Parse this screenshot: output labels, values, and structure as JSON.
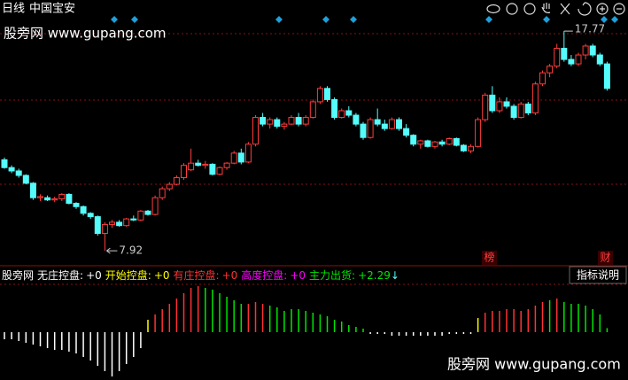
{
  "header": {
    "period": "日线",
    "name": "中国宝安"
  },
  "watermark": "股旁网 www.gupang.com",
  "chart_data": [
    {
      "type": "candlestick",
      "open": [
        12.0,
        11.65,
        11.5,
        11.3,
        10.95,
        10.3,
        10.3,
        10.2,
        10.25,
        10.45,
        10.05,
        9.9,
        9.6,
        9.45,
        8.7,
        9.1,
        9.2,
        9.05,
        9.35,
        9.3,
        9.7,
        9.55,
        10.3,
        10.7,
        10.9,
        11.2,
        11.55,
        11.85,
        11.75,
        11.8,
        11.35,
        11.65,
        11.85,
        12.3,
        11.9,
        12.7,
        13.9,
        13.6,
        13.8,
        13.5,
        13.6,
        13.9,
        13.6,
        13.9,
        14.6,
        15.2,
        14.7,
        13.9,
        14.2,
        14.0,
        13.6,
        13.0,
        13.8,
        13.6,
        13.4,
        13.8,
        13.4,
        13.1,
        12.7,
        12.85,
        12.6,
        12.8,
        12.7,
        12.95,
        12.65,
        12.4,
        12.6,
        13.8,
        14.9,
        14.2,
        14.6,
        14.4,
        13.9,
        14.5,
        14.1,
        15.4,
        15.9,
        16.2,
        17.0,
        16.5,
        16.3,
        16.7,
        17.1,
        16.7,
        16.3
      ],
      "high": [
        12.1,
        11.75,
        11.6,
        11.35,
        11.0,
        10.45,
        10.4,
        10.35,
        10.5,
        10.5,
        10.1,
        9.95,
        9.65,
        9.5,
        9.2,
        9.3,
        9.3,
        9.4,
        9.5,
        9.75,
        9.75,
        10.4,
        10.8,
        11.0,
        11.3,
        11.85,
        12.5,
        12.0,
        11.95,
        11.85,
        11.7,
        11.9,
        12.4,
        12.5,
        12.8,
        14.0,
        14.1,
        13.9,
        13.9,
        13.7,
        14.0,
        14.1,
        14.0,
        14.7,
        15.3,
        15.3,
        14.8,
        14.3,
        14.4,
        14.1,
        13.7,
        13.9,
        14.3,
        13.8,
        13.9,
        13.9,
        13.6,
        13.15,
        12.9,
        12.9,
        12.85,
        12.9,
        13.0,
        13.0,
        12.7,
        12.7,
        13.9,
        15.0,
        15.3,
        14.8,
        14.8,
        14.5,
        14.6,
        14.6,
        15.5,
        16.0,
        16.3,
        17.2,
        17.77,
        16.7,
        16.8,
        17.2,
        17.2,
        16.8,
        16.4
      ],
      "low": [
        11.6,
        11.4,
        11.2,
        10.9,
        10.2,
        10.15,
        10.15,
        10.1,
        10.15,
        10.0,
        9.8,
        9.5,
        9.35,
        8.6,
        7.92,
        8.95,
        9.0,
        9.0,
        9.25,
        9.25,
        9.5,
        9.5,
        10.2,
        10.6,
        10.85,
        11.1,
        11.5,
        11.7,
        11.6,
        11.3,
        11.3,
        11.55,
        11.8,
        11.8,
        11.85,
        12.6,
        13.5,
        13.4,
        13.4,
        13.35,
        13.55,
        13.5,
        13.5,
        13.85,
        14.5,
        14.6,
        13.8,
        13.85,
        13.9,
        13.5,
        12.9,
        12.95,
        13.5,
        13.3,
        13.35,
        13.3,
        13.0,
        12.6,
        12.5,
        12.55,
        12.5,
        12.6,
        12.65,
        12.6,
        12.35,
        12.3,
        12.55,
        13.7,
        14.1,
        14.1,
        14.3,
        13.8,
        13.85,
        14.0,
        14.0,
        15.3,
        15.7,
        16.1,
        16.4,
        16.2,
        16.2,
        16.5,
        16.6,
        16.2,
        15.1
      ],
      "close": [
        11.65,
        11.5,
        11.3,
        10.95,
        10.3,
        10.35,
        10.2,
        10.25,
        10.45,
        10.05,
        9.9,
        9.6,
        9.45,
        8.7,
        9.1,
        9.2,
        9.05,
        9.35,
        9.3,
        9.7,
        9.55,
        10.3,
        10.7,
        10.9,
        11.2,
        11.75,
        11.85,
        11.75,
        11.8,
        11.35,
        11.65,
        11.85,
        12.3,
        11.9,
        12.7,
        13.9,
        13.6,
        13.8,
        13.5,
        13.6,
        13.9,
        13.6,
        13.9,
        14.6,
        15.2,
        14.7,
        13.9,
        14.2,
        14.0,
        13.6,
        13.0,
        13.8,
        13.6,
        13.4,
        13.8,
        13.4,
        13.1,
        12.7,
        12.85,
        12.6,
        12.8,
        12.7,
        12.95,
        12.65,
        12.4,
        12.6,
        13.8,
        14.9,
        14.2,
        14.6,
        14.4,
        13.9,
        14.5,
        14.1,
        15.4,
        15.9,
        16.2,
        17.0,
        16.5,
        16.3,
        16.7,
        17.1,
        16.7,
        16.3,
        15.2
      ],
      "ylim": [
        7.25,
        18.37
      ],
      "up_color": "#ff3c3c",
      "down_color": "#54fcfc",
      "tags": [
        "榜",
        "财"
      ]
    },
    {
      "type": "bar",
      "title": "股旁网",
      "ylim": [
        -25,
        25
      ],
      "series": [
        {
          "name": "无庄控盘:",
          "value_label": "+0",
          "color": "#ffffff",
          "values": [
            -4,
            -4,
            -5,
            -6,
            -7,
            -8,
            -9,
            -10,
            -10,
            -11,
            -12,
            -14,
            -16,
            -19,
            -22,
            -25,
            -22,
            -18,
            -14,
            -9,
            null,
            null,
            null,
            null,
            null,
            null,
            null,
            null,
            null,
            null,
            null,
            null,
            null,
            null,
            null,
            null,
            null,
            null,
            null,
            null,
            null,
            null,
            null,
            null,
            null,
            null,
            null,
            null,
            null,
            null,
            null,
            -1,
            -1,
            -1,
            -2,
            -2,
            -2,
            -2,
            -2,
            -2,
            -2,
            -2,
            -1,
            -1,
            -1,
            -1,
            null,
            null,
            null,
            null,
            null,
            null,
            null,
            null,
            null,
            null,
            null,
            null,
            null,
            null,
            null,
            null,
            null,
            null,
            null
          ]
        },
        {
          "name": "开始控盘:",
          "value_label": "+0",
          "color": "#ffff00",
          "values": [
            null,
            null,
            null,
            null,
            null,
            null,
            null,
            null,
            null,
            null,
            null,
            null,
            null,
            null,
            null,
            null,
            null,
            null,
            null,
            null,
            7,
            null,
            null,
            null,
            null,
            null,
            null,
            null,
            null,
            null,
            null,
            null,
            null,
            null,
            null,
            null,
            null,
            null,
            null,
            null,
            null,
            null,
            null,
            null,
            null,
            null,
            null,
            null,
            null,
            null,
            null,
            null,
            null,
            null,
            null,
            null,
            null,
            null,
            null,
            null,
            null,
            null,
            null,
            null,
            null,
            null,
            8,
            null,
            null,
            null,
            null,
            null,
            null,
            null,
            null,
            null,
            null,
            null,
            null,
            null,
            null,
            null,
            null,
            null,
            null
          ]
        },
        {
          "name": "有庄控盘:",
          "value_label": "+0",
          "color": "#ff3232",
          "values": [
            null,
            null,
            null,
            null,
            null,
            null,
            null,
            null,
            null,
            null,
            null,
            null,
            null,
            null,
            null,
            null,
            null,
            null,
            null,
            null,
            null,
            10,
            13,
            16,
            19,
            22,
            25,
            26,
            null,
            null,
            null,
            null,
            null,
            null,
            16,
            17,
            16,
            null,
            null,
            null,
            null,
            null,
            null,
            null,
            null,
            null,
            null,
            null,
            null,
            null,
            null,
            null,
            null,
            null,
            null,
            null,
            null,
            null,
            null,
            null,
            null,
            null,
            null,
            null,
            null,
            null,
            null,
            11,
            12,
            12,
            13,
            13,
            12,
            13,
            15,
            17,
            null,
            19,
            null,
            null,
            null,
            null,
            null,
            null,
            null
          ]
        },
        {
          "name": "高度控盘:",
          "value_label": "+0",
          "color": "#ff00ff"
        },
        {
          "name": "主力出货:",
          "value_label": "+2.29",
          "color": "#00e600",
          "values": [
            null,
            null,
            null,
            null,
            null,
            null,
            null,
            null,
            null,
            null,
            null,
            null,
            null,
            null,
            null,
            null,
            null,
            null,
            null,
            null,
            null,
            null,
            null,
            null,
            null,
            null,
            null,
            null,
            25,
            24,
            22,
            20,
            18,
            16,
            null,
            null,
            null,
            15,
            14,
            12,
            13,
            13,
            12,
            11,
            10,
            9,
            7,
            6,
            4,
            3,
            2,
            null,
            null,
            null,
            null,
            null,
            null,
            null,
            null,
            null,
            null,
            null,
            null,
            null,
            null,
            null,
            null,
            null,
            null,
            null,
            null,
            null,
            null,
            null,
            null,
            null,
            18,
            null,
            17,
            16,
            16,
            15,
            13,
            10,
            2.29
          ]
        }
      ],
      "trend": "↓",
      "button": "指标说明"
    }
  ]
}
